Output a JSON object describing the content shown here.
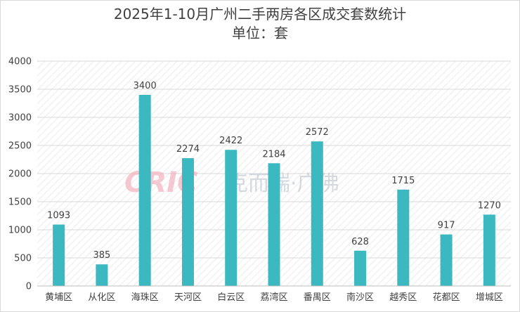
{
  "chart_data": {
    "type": "bar",
    "title": "2025年1-10月广州二手两房各区成交套数统计",
    "subtitle": "单位：套",
    "categories": [
      "黄埔区",
      "从化区",
      "海珠区",
      "天河区",
      "白云区",
      "荔湾区",
      "番禺区",
      "南沙区",
      "越秀区",
      "花都区",
      "增城区"
    ],
    "values": [
      1093,
      385,
      3400,
      2274,
      2422,
      2184,
      2572,
      628,
      1715,
      917,
      1270
    ],
    "ylim": [
      0,
      4000
    ],
    "yticks": [
      0,
      500,
      1000,
      1500,
      2000,
      2500,
      3000,
      3500,
      4000
    ],
    "xlabel": "",
    "ylabel": "",
    "grid": true,
    "bar_color": "#3cb8c0",
    "legend": "none"
  },
  "watermark": {
    "logo_text": "CRIC",
    "brand_text": "克而瑞·广佛"
  }
}
